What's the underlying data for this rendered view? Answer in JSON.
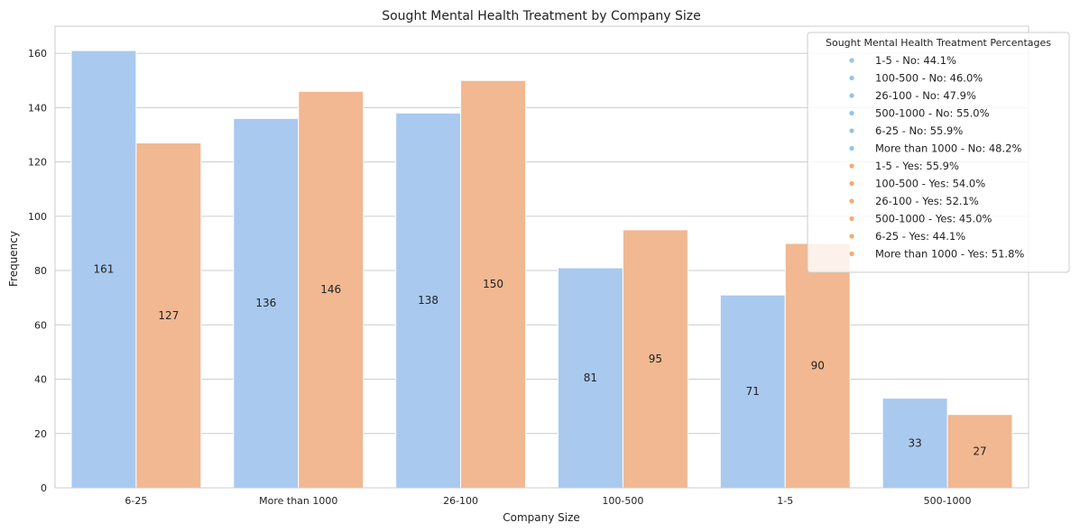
{
  "chart_data": {
    "type": "bar",
    "title": "Sought Mental Health Treatment by Company Size",
    "xlabel": "Company Size",
    "ylabel": "Frequency",
    "ylim": [
      0,
      170
    ],
    "yticks": [
      0,
      20,
      40,
      60,
      80,
      100,
      120,
      140,
      160
    ],
    "grid": true,
    "categories": [
      "6-25",
      "More than 1000",
      "26-100",
      "100-500",
      "1-5",
      "500-1000"
    ],
    "series": [
      {
        "key": "No",
        "color": "#a9c9ef",
        "values": [
          161,
          136,
          138,
          81,
          71,
          33
        ]
      },
      {
        "key": "Yes",
        "color": "#f1b891",
        "values": [
          127,
          146,
          150,
          95,
          90,
          27
        ]
      }
    ],
    "legend": {
      "title": "Sought Mental Health Treatment Percentages",
      "placement": "top-right",
      "entries": [
        {
          "label": "1-5 - No: 44.1%",
          "color": "#92c5eb"
        },
        {
          "label": "100-500 - No: 46.0%",
          "color": "#92c5eb"
        },
        {
          "label": "26-100 - No: 47.9%",
          "color": "#92c5eb"
        },
        {
          "label": "500-1000 - No: 55.0%",
          "color": "#92c5eb"
        },
        {
          "label": "6-25 - No: 55.9%",
          "color": "#92c5eb"
        },
        {
          "label": "More than 1000 - No: 48.2%",
          "color": "#92c5eb"
        },
        {
          "label": "1-5 - Yes: 55.9%",
          "color": "#f5ab77"
        },
        {
          "label": "100-500 - Yes: 54.0%",
          "color": "#f5ab77"
        },
        {
          "label": "26-100 - Yes: 52.1%",
          "color": "#f5ab77"
        },
        {
          "label": "500-1000 - Yes: 45.0%",
          "color": "#f5ab77"
        },
        {
          "label": "6-25 - Yes: 44.1%",
          "color": "#f5ab77"
        },
        {
          "label": "More than 1000 - Yes: 51.8%",
          "color": "#f5ab77"
        }
      ]
    }
  }
}
